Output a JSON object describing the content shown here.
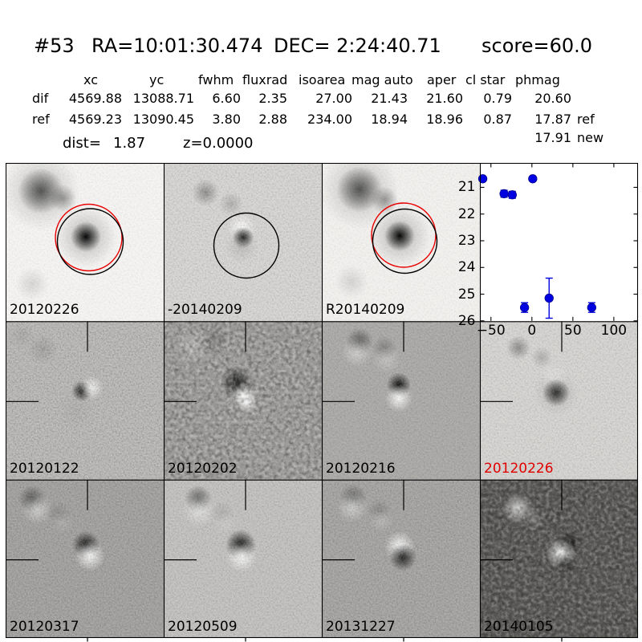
{
  "header": {
    "object_id": "#53",
    "ra": "RA=10:01:30.474",
    "dec": "DEC= 2:24:40.71",
    "score": "score=60.0"
  },
  "photometry": {
    "columns": [
      "xc",
      "yc",
      "fwhm",
      "fluxrad",
      "isoarea",
      "mag auto",
      "aper",
      "cl star",
      "phmag"
    ],
    "rows": [
      {
        "label": "dif",
        "values": [
          "4569.88",
          "13088.71",
          "6.60",
          "2.35",
          "27.00",
          "21.43",
          "21.60",
          "0.79",
          "20.60"
        ],
        "suffix": ""
      },
      {
        "label": "ref",
        "values": [
          "4569.23",
          "13090.45",
          "3.80",
          "2.88",
          "234.00",
          "18.94",
          "18.96",
          "0.87",
          "17.87"
        ],
        "suffix": "ref"
      }
    ],
    "extra_phmag": {
      "value": "17.91",
      "suffix": "new"
    },
    "dist_label": "dist=",
    "dist_value": "1.87",
    "z_value": "z=0.0000"
  },
  "cutouts": [
    {
      "label": "20120226",
      "label_color": "#000000"
    },
    {
      "label": "-20140209",
      "label_color": "#000000"
    },
    {
      "label": "R20140209",
      "label_color": "#000000"
    },
    {
      "label": "20120122",
      "label_color": "#000000"
    },
    {
      "label": "20120202",
      "label_color": "#000000"
    },
    {
      "label": "20120216",
      "label_color": "#000000"
    },
    {
      "label": "20120226",
      "label_color": "#e00000"
    },
    {
      "label": "20120317",
      "label_color": "#000000"
    },
    {
      "label": "20120509",
      "label_color": "#000000"
    },
    {
      "label": "20131227",
      "label_color": "#000000"
    },
    {
      "label": "20140105",
      "label_color": "#000000"
    }
  ],
  "chart_data": {
    "type": "scatter",
    "title": "",
    "xlabel": "",
    "ylabel": "",
    "x_tick_labels": [
      "−50",
      "0",
      "50",
      "100"
    ],
    "x_ticks": [
      -50,
      0,
      50,
      100
    ],
    "y_ticks": [
      21,
      22,
      23,
      24,
      25,
      26
    ],
    "xlim": [
      -63,
      129
    ],
    "ylim": [
      26.0,
      20.1
    ],
    "y_axis_inverted_magnitudes": true,
    "marker_color": "#0000e0",
    "points": [
      {
        "x": -60,
        "y": 20.68,
        "err": 0.06
      },
      {
        "x": -34,
        "y": 21.24,
        "err": 0.13
      },
      {
        "x": -24,
        "y": 21.28,
        "err": 0.13
      },
      {
        "x": 1,
        "y": 20.68,
        "err": 0.05
      },
      {
        "x": -9,
        "y": 25.5,
        "err": 0.18
      },
      {
        "x": 21,
        "y": 25.15,
        "err": 0.75
      },
      {
        "x": 73,
        "y": 25.5,
        "err": 0.18
      }
    ]
  }
}
